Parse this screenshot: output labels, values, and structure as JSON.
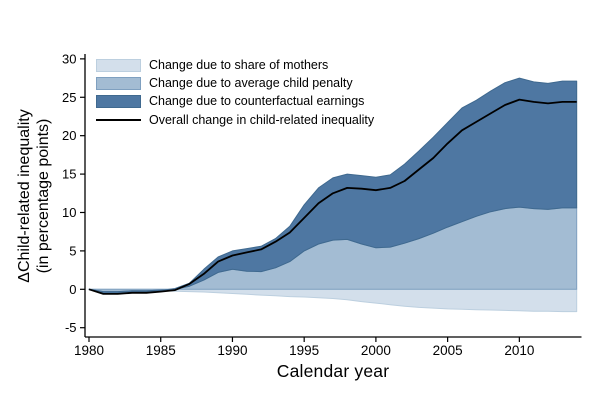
{
  "figure": {
    "xlabel": "Calendar year",
    "ylabel_line1": "ΔChild-related inequality",
    "ylabel_line2": "(in percentage points)"
  },
  "chart_data": {
    "type": "area",
    "stacked": true,
    "title": "",
    "xlabel": "Calendar year",
    "ylabel_line1": "ΔChild-related inequality",
    "ylabel_line2": "(in percentage points)",
    "xlim": [
      1980,
      2014
    ],
    "ylim": [
      -6.2,
      30.6
    ],
    "xticks": [
      1980,
      1985,
      1990,
      1995,
      2000,
      2005,
      2010
    ],
    "yticks": [
      -5,
      0,
      5,
      10,
      15,
      20,
      25,
      30
    ],
    "grid": false,
    "legend_position": "top-left-inside",
    "axis_color": "#000000",
    "x": [
      1980,
      1981,
      1982,
      1983,
      1984,
      1985,
      1986,
      1987,
      1988,
      1989,
      1990,
      1991,
      1992,
      1993,
      1994,
      1995,
      1996,
      1997,
      1998,
      1999,
      2000,
      2001,
      2002,
      2003,
      2004,
      2005,
      2006,
      2007,
      2008,
      2009,
      2010,
      2011,
      2012,
      2013
    ],
    "series": [
      {
        "name": "Change due to share of mothers",
        "type": "area",
        "band": "zero-to-value",
        "fill": "#d3dfeb",
        "edge": "#bccfdf",
        "values": [
          0,
          -0.1,
          -0.1,
          -0.1,
          -0.15,
          -0.2,
          -0.25,
          -0.3,
          -0.35,
          -0.45,
          -0.55,
          -0.65,
          -0.75,
          -0.85,
          -0.95,
          -1.0,
          -1.1,
          -1.2,
          -1.35,
          -1.6,
          -1.8,
          -2.0,
          -2.2,
          -2.35,
          -2.45,
          -2.55,
          -2.6,
          -2.65,
          -2.7,
          -2.75,
          -2.8,
          -2.85,
          -2.85,
          -2.9
        ]
      },
      {
        "name": "Change due to average child penalty",
        "type": "area",
        "band": "zero-to-value",
        "fill": "#a3bcd3",
        "edge": "#7fa0c0",
        "values": [
          0,
          -0.3,
          -0.3,
          -0.2,
          -0.2,
          -0.1,
          0.0,
          0.4,
          1.2,
          2.2,
          2.6,
          2.35,
          2.3,
          2.8,
          3.6,
          5.0,
          5.9,
          6.4,
          6.5,
          5.9,
          5.4,
          5.5,
          6.0,
          6.6,
          7.3,
          8.1,
          8.8,
          9.5,
          10.1,
          10.5,
          10.7,
          10.5,
          10.4,
          10.6
        ]
      },
      {
        "name": "Change due to counterfactual earnings",
        "type": "area",
        "band": "between-previous-and-value",
        "fill": "#4e77a2",
        "edge": "#3f698f",
        "values": [
          0,
          -0.5,
          -0.5,
          -0.35,
          -0.3,
          -0.15,
          0.1,
          0.8,
          2.6,
          4.2,
          5.0,
          5.3,
          5.6,
          6.6,
          8.2,
          11.0,
          13.2,
          14.5,
          15.0,
          14.8,
          14.6,
          14.9,
          16.3,
          18.0,
          19.8,
          21.7,
          23.6,
          24.6,
          25.8,
          26.9,
          27.5,
          27.0,
          26.8,
          27.1
        ]
      },
      {
        "name": "Overall change in child-related inequality",
        "type": "line",
        "color": "#000000",
        "values": [
          0,
          -0.6,
          -0.6,
          -0.45,
          -0.45,
          -0.3,
          -0.1,
          0.7,
          2.0,
          3.6,
          4.4,
          4.8,
          5.2,
          6.2,
          7.4,
          9.3,
          11.2,
          12.5,
          13.2,
          13.1,
          12.9,
          13.2,
          14.1,
          15.6,
          17.1,
          19.0,
          20.7,
          21.8,
          22.9,
          24.0,
          24.7,
          24.4,
          24.2,
          24.4
        ]
      }
    ]
  }
}
